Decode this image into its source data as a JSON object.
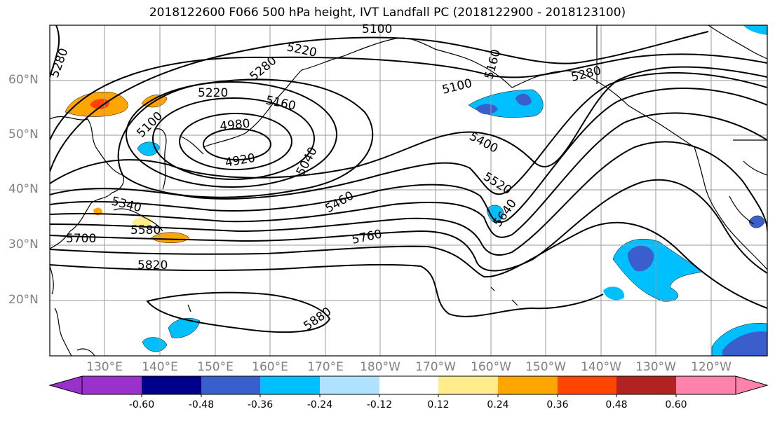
{
  "title": "2018122600 F066 500 hPa height, IVT Landfall PC (2018122900 - 2018123100)",
  "latitude_labels": [
    "60°N",
    "50°N",
    "40°N",
    "30°N",
    "20°N"
  ],
  "longitude_labels": [
    "130°E",
    "140°E",
    "150°E",
    "160°E",
    "170°E",
    "180°W",
    "170°W",
    "160°W",
    "150°W",
    "140°W",
    "130°W",
    "120°W"
  ],
  "height_contour_labels": [
    "5100",
    "5220",
    "5280",
    "5280",
    "5160",
    "5100",
    "5280",
    "5220",
    "5160",
    "5100",
    "4980",
    "4920",
    "5040",
    "5400",
    "5520",
    "5640",
    "5460",
    "5340",
    "5580",
    "5700",
    "5760",
    "5820",
    "5880"
  ],
  "colorbar": {
    "tick_labels": [
      "-0.60",
      "-0.48",
      "-0.36",
      "-0.24",
      "-0.12",
      "0.12",
      "0.24",
      "0.36",
      "0.48",
      "0.60"
    ],
    "colors": [
      "#9932cc",
      "#00008b",
      "#3a5fcd",
      "#00bfff",
      "#b0e2ff",
      "#ffffff",
      "#ffec8b",
      "#ffa500",
      "#ff4500",
      "#b22222",
      "#ff82ab"
    ]
  }
}
